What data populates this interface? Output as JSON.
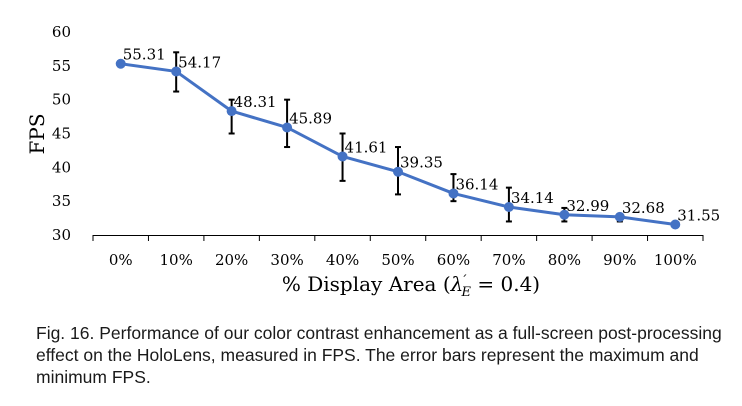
{
  "chart_data": {
    "type": "line",
    "title": "",
    "xlabel": "% Display Area (λ'E = 0.4)",
    "xlabel_parts": {
      "prefix": "% Display Area (",
      "lambda": "λ",
      "prime": "′",
      "sub": "E",
      "suffix": " = 0.4)"
    },
    "ylabel": "FPS",
    "ylim": [
      30,
      60
    ],
    "yticks": [
      "30",
      "35",
      "40",
      "45",
      "50",
      "55",
      "60"
    ],
    "yticks_values": [
      30,
      35,
      40,
      45,
      50,
      55,
      60
    ],
    "categories": [
      "0%",
      "10%",
      "20%",
      "30%",
      "40%",
      "50%",
      "60%",
      "70%",
      "80%",
      "90%",
      "100%"
    ],
    "series": [
      {
        "name": "FPS",
        "color": "#4472C4",
        "values": [
          55.31,
          54.17,
          48.31,
          45.89,
          41.61,
          39.35,
          36.14,
          34.14,
          32.99,
          32.68,
          31.55
        ],
        "labels": [
          "55.31",
          "54.17",
          "48.31",
          "45.89",
          "41.61",
          "39.35",
          "36.14",
          "34.14",
          "32.99",
          "32.68",
          "31.55"
        ],
        "error_max": [
          55.31,
          57.0,
          50.0,
          50.0,
          45.0,
          43.0,
          39.0,
          37.0,
          34.0,
          33.0,
          31.55
        ],
        "error_min": [
          55.31,
          51.2,
          45.0,
          43.0,
          38.0,
          36.0,
          35.0,
          32.0,
          32.0,
          32.0,
          31.55
        ]
      }
    ],
    "grid": false
  },
  "caption": "Fig. 16. Performance of our color contrast enhancement as a full-screen post-processing effect on the HoloLens, measured in FPS. The error bars represent the maximum and minimum FPS."
}
